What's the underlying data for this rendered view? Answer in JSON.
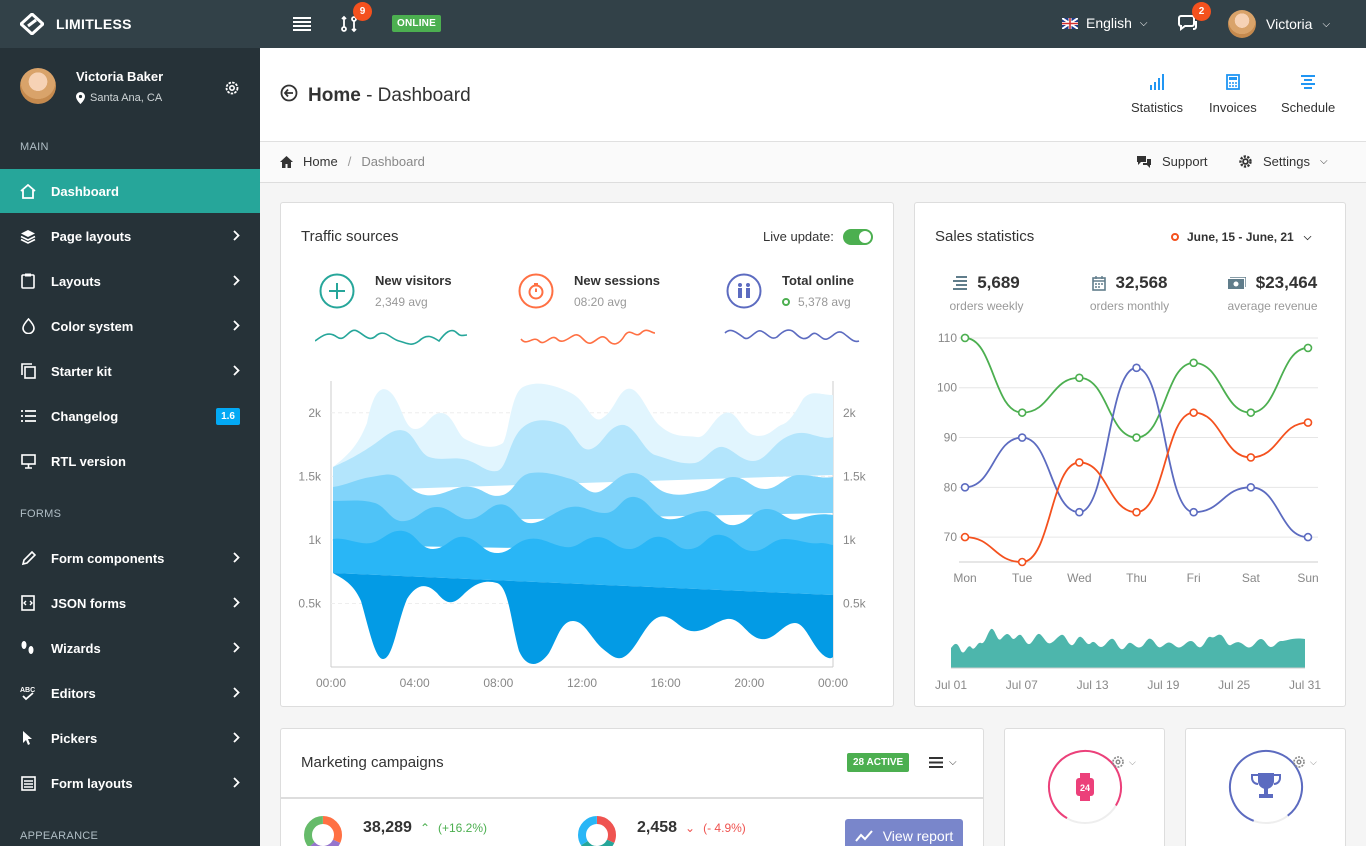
{
  "app": {
    "brand": "LIMITLESS",
    "online": "ONLINE",
    "notif_count": "9",
    "msg_count": "2",
    "language": "English",
    "user": "Victoria"
  },
  "sidebar": {
    "user_name": "Victoria Baker",
    "user_location": "Santa Ana, CA",
    "sections": {
      "main": "MAIN",
      "forms": "FORMS",
      "appearance": "APPEARANCE"
    },
    "items": [
      {
        "label": "Dashboard",
        "icon": "home-icon"
      },
      {
        "label": "Page layouts",
        "icon": "stack-icon"
      },
      {
        "label": "Layouts",
        "icon": "clipboard-icon"
      },
      {
        "label": "Color system",
        "icon": "droplet-icon"
      },
      {
        "label": "Starter kit",
        "icon": "copy-icon"
      },
      {
        "label": "Changelog",
        "icon": "list-icon",
        "badge": "1.6"
      },
      {
        "label": "RTL version",
        "icon": "monitor-icon"
      },
      {
        "label": "Form components",
        "icon": "pencil-icon"
      },
      {
        "label": "JSON forms",
        "icon": "code-file-icon"
      },
      {
        "label": "Wizards",
        "icon": "footsteps-icon"
      },
      {
        "label": "Editors",
        "icon": "spellcheck-icon"
      },
      {
        "label": "Pickers",
        "icon": "pointer-icon"
      },
      {
        "label": "Form layouts",
        "icon": "form-icon"
      }
    ]
  },
  "page_header": {
    "title": "Home",
    "subtitle": "- Dashboard",
    "buttons": [
      "Statistics",
      "Invoices",
      "Schedule"
    ]
  },
  "breadcrumb": {
    "home": "Home",
    "current": "Dashboard",
    "support": "Support",
    "settings": "Settings"
  },
  "traffic": {
    "title": "Traffic sources",
    "live_update": "Live update:",
    "live_on": true,
    "kpis": [
      {
        "title": "New visitors",
        "value": "2,349 avg",
        "color": "#26a69a"
      },
      {
        "title": "New sessions",
        "value": "08:20 avg",
        "color": "#ff7043"
      },
      {
        "title": "Total online",
        "value": "5,378 avg",
        "color": "#5c6bc0"
      }
    ]
  },
  "sales": {
    "title": "Sales statistics",
    "date_range": "June, 15 - June, 21",
    "stats": [
      {
        "value": "5,689",
        "label": "orders weekly",
        "icon": "list-icon"
      },
      {
        "value": "32,568",
        "label": "orders monthly",
        "icon": "calendar-icon"
      },
      {
        "value": "$23,464",
        "label": "average revenue",
        "icon": "cash-icon"
      }
    ]
  },
  "marketing": {
    "title": "Marketing campaigns",
    "active_badge": "28 ACTIVE",
    "stat1": "38,289",
    "change1": "(+16.2%)",
    "stat2": "2,458",
    "change2": "(- 4.9%)",
    "view_report": "View report"
  },
  "chart_data": [
    {
      "type": "area",
      "title": "",
      "x": [
        "00:00",
        "04:00",
        "08:00",
        "12:00",
        "16:00",
        "20:00",
        "00:00"
      ],
      "y_ticks": [
        "0.5k",
        "1k",
        "1.5k",
        "2k"
      ],
      "ylim": [
        0,
        2250
      ],
      "stacked": true,
      "colors": [
        "#039be5",
        "#29b6f6",
        "#4fc3f7",
        "#81d4fa",
        "#b3e5fc",
        "#e1f5fe"
      ]
    },
    {
      "type": "line",
      "title": "",
      "categories": [
        "Mon",
        "Tue",
        "Wed",
        "Thu",
        "Fri",
        "Sat",
        "Sun"
      ],
      "ylim": [
        65,
        112
      ],
      "y_ticks": [
        70,
        80,
        90,
        100,
        110
      ],
      "series": [
        {
          "color": "#4caf50",
          "values": [
            110,
            95,
            102,
            90,
            105,
            95,
            108
          ]
        },
        {
          "color": "#5c6bc0",
          "values": [
            80,
            90,
            75,
            104,
            75,
            80,
            70
          ]
        },
        {
          "color": "#f4511e",
          "values": [
            70,
            65,
            85,
            75,
            95,
            86,
            93
          ]
        }
      ]
    },
    {
      "type": "area",
      "title": "",
      "x": [
        "Jul 01",
        "Jul 07",
        "Jul 13",
        "Jul 19",
        "Jul 25",
        "Jul 31"
      ],
      "color": "#26a69a"
    }
  ]
}
